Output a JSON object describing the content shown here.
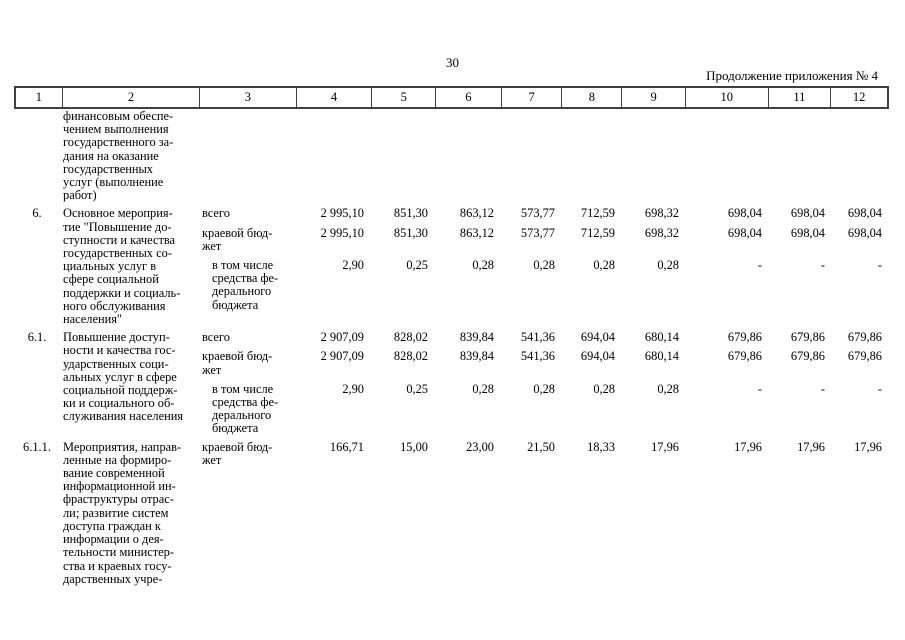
{
  "page": {
    "number": "30",
    "continuation_note": "Продолжение приложения № 4"
  },
  "table": {
    "header_cols": [
      "1",
      "2",
      "3",
      "4",
      "5",
      "6",
      "7",
      "8",
      "9",
      "10",
      "11",
      "12"
    ],
    "rows": [
      {
        "num": "",
        "name": "финансовым обеспе-\nчением выполнения\nгосударственного за-\nдания на оказание\nгосударственных\nуслуг (выполнение\nработ)",
        "sub": []
      },
      {
        "num": "6.",
        "name": "Основное мероприя-\nтие \"Повышение до-\nступности и качества\nгосударственных со-\nциальных услуг в\nсфере социальной\nподдержки и социаль-\nного обслуживания\nнаселения\"",
        "sub": [
          {
            "label": "всего",
            "values": [
              "2 995,10",
              "851,30",
              "863,12",
              "573,77",
              "712,59",
              "698,32",
              "698,04",
              "698,04",
              "698,04"
            ]
          },
          {
            "label": "краевой бюд-\nжет",
            "values": [
              "2 995,10",
              "851,30",
              "863,12",
              "573,77",
              "712,59",
              "698,32",
              "698,04",
              "698,04",
              "698,04"
            ]
          },
          {
            "label": "в том числе\nсредства фе-\nдерального\nбюджета",
            "values": [
              "2,90",
              "0,25",
              "0,28",
              "0,28",
              "0,28",
              "0,28",
              "-",
              "-",
              "-"
            ]
          }
        ]
      },
      {
        "num": "6.1.",
        "name": "Повышение доступ-\nности и качества гос-\nударственных соци-\nальных услуг в сфере\nсоциальной поддерж-\nки и социального об-\nслуживания населения",
        "sub": [
          {
            "label": "всего",
            "values": [
              "2 907,09",
              "828,02",
              "839,84",
              "541,36",
              "694,04",
              "680,14",
              "679,86",
              "679,86",
              "679,86"
            ]
          },
          {
            "label": "краевой бюд-\nжет",
            "values": [
              "2 907,09",
              "828,02",
              "839,84",
              "541,36",
              "694,04",
              "680,14",
              "679,86",
              "679,86",
              "679,86"
            ]
          },
          {
            "label": "в том числе\nсредства фе-\nдерального\nбюджета",
            "values": [
              "2,90",
              "0,25",
              "0,28",
              "0,28",
              "0,28",
              "0,28",
              "-",
              "-",
              "-"
            ]
          }
        ]
      },
      {
        "num": "6.1.1.",
        "name": "Мероприятия, направ-\nленные на формиро-\nвание современной\nинформационной ин-\nфраструктуры отрас-\nли; развитие систем\nдоступа граждан к\nинформации о дея-\nтельности министер-\nства и краевых госу-\nдарственных учре-",
        "sub": [
          {
            "label": "краевой бюд-\nжет",
            "values": [
              "166,71",
              "15,00",
              "23,00",
              "21,50",
              "18,33",
              "17,96",
              "17,96",
              "17,96",
              "17,96"
            ]
          }
        ]
      }
    ]
  }
}
